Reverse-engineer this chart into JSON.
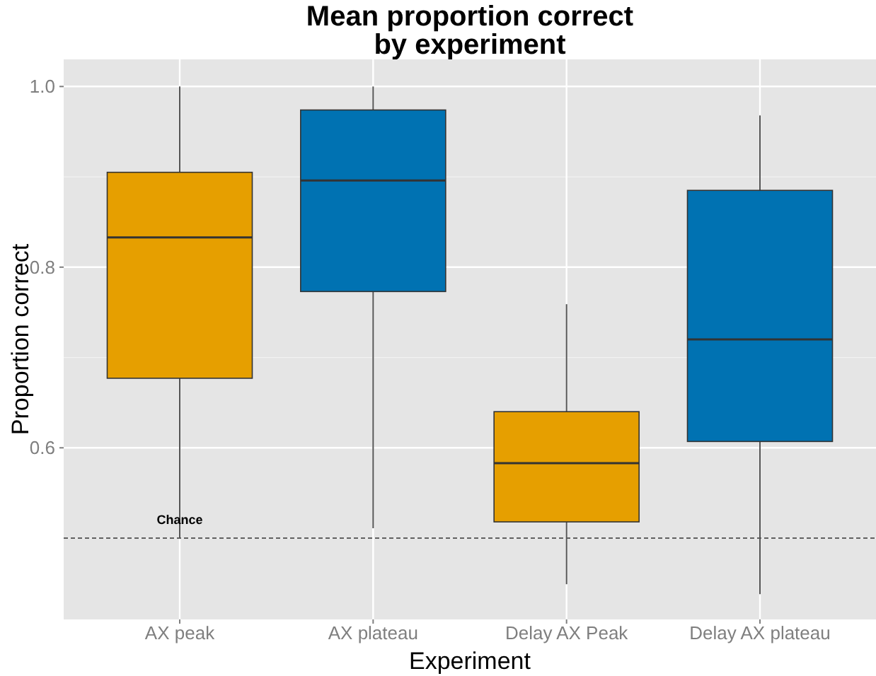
{
  "chart_data": {
    "type": "box",
    "title": "Mean proportion correct\nby experiment",
    "xlabel": "Experiment",
    "ylabel": "Proportion correct",
    "categories": [
      "AX peak",
      "AX plateau",
      "Delay AX Peak",
      "Delay AX plateau"
    ],
    "colors": [
      "#e69f00",
      "#0072b2",
      "#e69f00",
      "#0072b2"
    ],
    "boxes": [
      {
        "low": 0.5,
        "q1": 0.677,
        "median": 0.833,
        "q3": 0.905,
        "high": 1.0
      },
      {
        "low": 0.511,
        "q1": 0.773,
        "median": 0.896,
        "q3": 0.974,
        "high": 1.0
      },
      {
        "low": 0.449,
        "q1": 0.518,
        "median": 0.583,
        "q3": 0.64,
        "high": 0.759
      },
      {
        "low": 0.438,
        "q1": 0.607,
        "median": 0.72,
        "q3": 0.885,
        "high": 0.968
      }
    ],
    "ylim": [
      0.41,
      1.03
    ],
    "yticks": [
      0.6,
      {
        "value": 0.8,
        "label": "0.8"
      },
      {
        "value": 1.0,
        "label": "1.0"
      }
    ],
    "grid": true,
    "ref_lines": [
      {
        "axis": "y",
        "value": 0.5,
        "label": "Chance",
        "line_style": "dashed",
        "color": "#333333"
      }
    ]
  }
}
